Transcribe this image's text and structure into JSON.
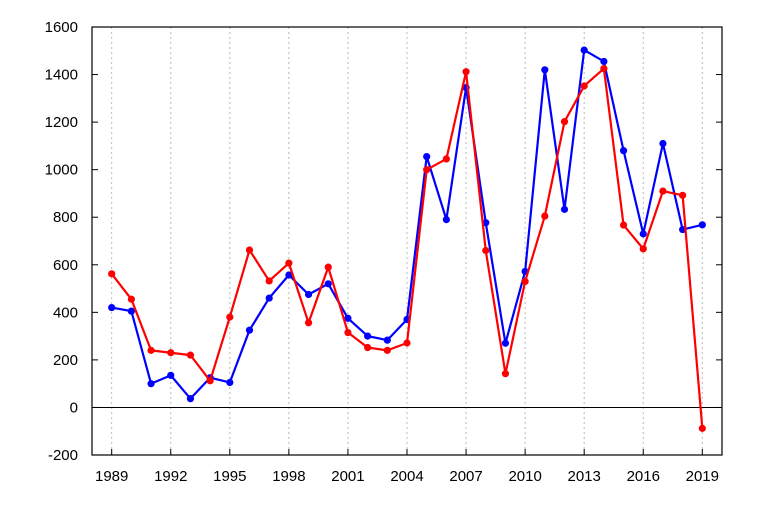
{
  "chart_data": {
    "type": "line",
    "title": "",
    "xlabel": "",
    "ylabel": "",
    "x": [
      1989,
      1990,
      1991,
      1992,
      1993,
      1994,
      1995,
      1996,
      1997,
      1998,
      1999,
      2000,
      2001,
      2002,
      2003,
      2004,
      2005,
      2006,
      2007,
      2008,
      2009,
      2010,
      2011,
      2012,
      2013,
      2014,
      2015,
      2016,
      2017,
      2018,
      2019
    ],
    "xlim": [
      1988,
      2020
    ],
    "ylim": [
      -200,
      1600
    ],
    "x_ticks": [
      1989,
      1992,
      1995,
      1998,
      2001,
      2004,
      2007,
      2010,
      2013,
      2016,
      2019
    ],
    "y_ticks": [
      -200,
      0,
      200,
      400,
      600,
      800,
      1000,
      1200,
      1400,
      1600
    ],
    "x_tick_labels": [
      "1989",
      "1992",
      "1995",
      "1998",
      "2001",
      "2004",
      "2007",
      "2010",
      "2013",
      "2016",
      "2019"
    ],
    "y_tick_labels": [
      "-200",
      "0",
      "200",
      "400",
      "600",
      "800",
      "1000",
      "1200",
      "1400",
      "1600"
    ],
    "grid": "vertical dotted at x ticks",
    "zero_line": true,
    "legend": "none",
    "series": [
      {
        "color": "#0000ff",
        "values": [
          420,
          405,
          100,
          135,
          37,
          125,
          105,
          325,
          460,
          557,
          475,
          520,
          375,
          300,
          283,
          370,
          1055,
          790,
          1345,
          777,
          270,
          572,
          1420,
          833,
          1503,
          1455,
          1080,
          730,
          1110,
          748,
          768
        ]
      },
      {
        "color": "#ff0000",
        "values": [
          562,
          455,
          240,
          230,
          220,
          112,
          380,
          662,
          532,
          607,
          356,
          590,
          315,
          252,
          240,
          271,
          1000,
          1045,
          1412,
          660,
          142,
          530,
          805,
          1202,
          1352,
          1425,
          767,
          667,
          910,
          892,
          -88
        ]
      }
    ]
  }
}
